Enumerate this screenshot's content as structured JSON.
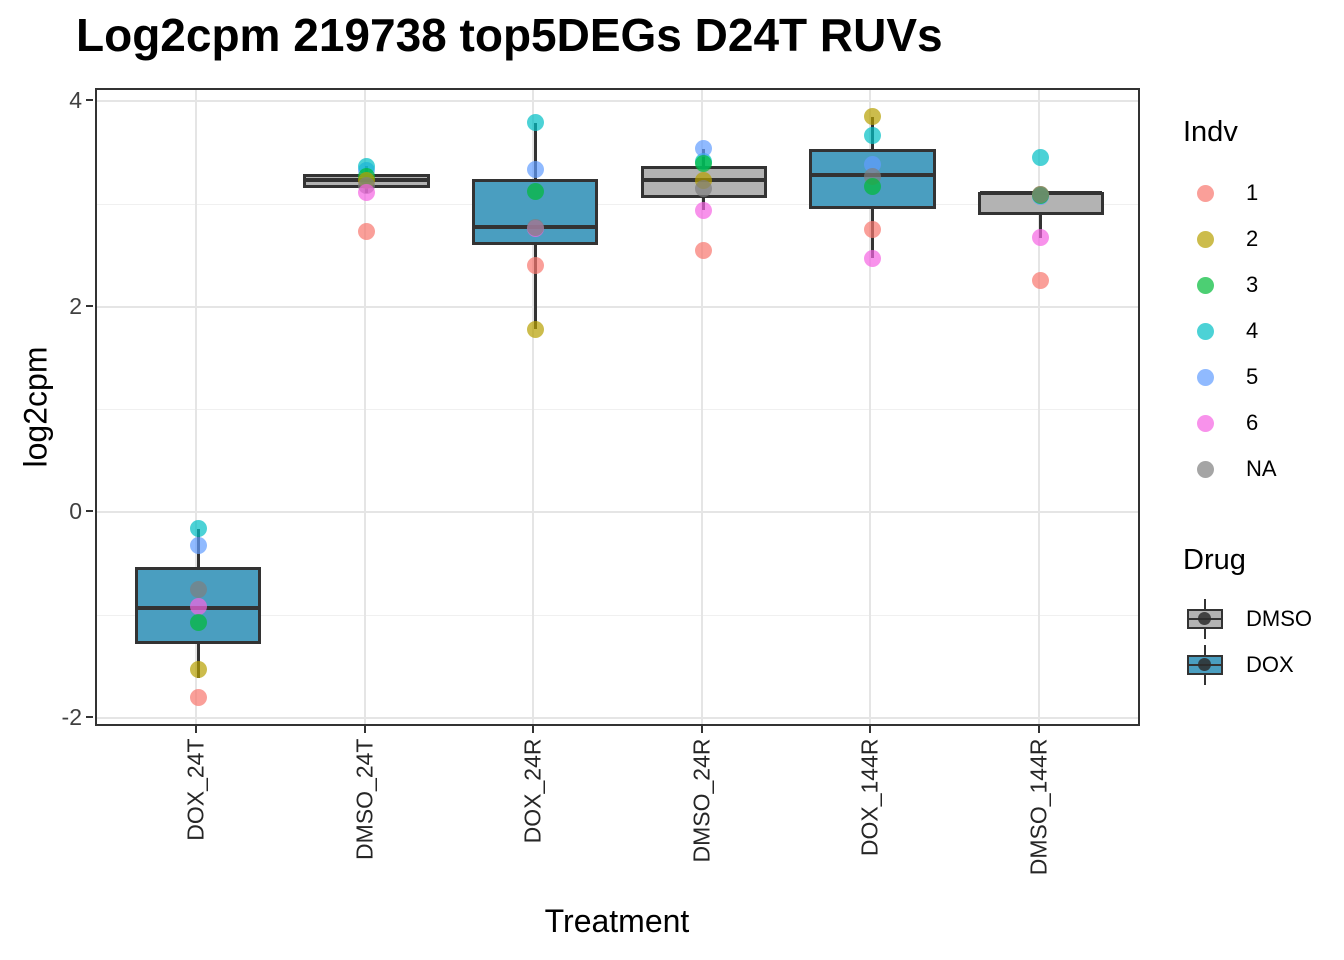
{
  "chart_data": {
    "type": "boxplot",
    "title": "Log2cpm 219738 top5DEGs D24T RUVs",
    "xlabel": "Treatment",
    "ylabel": "log2cpm",
    "categories": [
      "DOX_24T",
      "DMSO_24T",
      "DOX_24R",
      "DMSO_24R",
      "DOX_144R",
      "DMSO_144R"
    ],
    "ylim": [
      -2.09,
      4.12
    ],
    "y_ticks_major": [
      4,
      2,
      0,
      -2
    ],
    "y_ticks_minor": [
      3,
      1,
      -1
    ],
    "grid": true,
    "legend_position": "right",
    "point_alpha": 0.7,
    "boxes": [
      {
        "category": "DOX_24T",
        "drug": "DOX",
        "q1": -1.27,
        "median": -0.92,
        "q3": -0.52,
        "whisker_low": -1.6,
        "whisker_high": -0.15,
        "points": [
          {
            "indv": "5",
            "value": -0.31
          },
          {
            "indv": "4",
            "value": -0.15
          },
          {
            "indv": "NA",
            "value": -0.74
          },
          {
            "indv": "6",
            "value": -0.91
          },
          {
            "indv": "3",
            "value": -1.06
          },
          {
            "indv": "2",
            "value": -1.52
          },
          {
            "indv": "1",
            "value": -1.79
          }
        ]
      },
      {
        "category": "DMSO_24T",
        "drug": "DMSO",
        "q1": 3.17,
        "median": 3.24,
        "q3": 3.3,
        "whisker_low": 3.12,
        "whisker_high": 3.38,
        "points": [
          {
            "indv": "5",
            "value": 3.34
          },
          {
            "indv": "4",
            "value": 3.38
          },
          {
            "indv": "3",
            "value": 3.28
          },
          {
            "indv": "2",
            "value": 3.24
          },
          {
            "indv": "NA",
            "value": 3.19
          },
          {
            "indv": "6",
            "value": 3.12
          },
          {
            "indv": "1",
            "value": 2.74
          }
        ]
      },
      {
        "category": "DOX_24R",
        "drug": "DOX",
        "q1": 2.61,
        "median": 2.79,
        "q3": 3.25,
        "whisker_low": 1.79,
        "whisker_high": 3.8,
        "points": [
          {
            "indv": "4",
            "value": 3.8
          },
          {
            "indv": "5",
            "value": 3.35
          },
          {
            "indv": "3",
            "value": 3.13
          },
          {
            "indv": "6",
            "value": 2.77
          },
          {
            "indv": "NA",
            "value": 2.78
          },
          {
            "indv": "1",
            "value": 2.41
          },
          {
            "indv": "2",
            "value": 1.79
          }
        ]
      },
      {
        "category": "DMSO_24R",
        "drug": "DMSO",
        "q1": 3.07,
        "median": 3.24,
        "q3": 3.38,
        "whisker_low": 2.95,
        "whisker_high": 3.55,
        "points": [
          {
            "indv": "4",
            "value": 3.42
          },
          {
            "indv": "5",
            "value": 3.55
          },
          {
            "indv": "3",
            "value": 3.4
          },
          {
            "indv": "2",
            "value": 3.24
          },
          {
            "indv": "NA",
            "value": 3.16
          },
          {
            "indv": "6",
            "value": 2.95
          },
          {
            "indv": "1",
            "value": 2.56
          }
        ]
      },
      {
        "category": "DOX_144R",
        "drug": "DOX",
        "q1": 2.96,
        "median": 3.29,
        "q3": 3.55,
        "whisker_low": 2.48,
        "whisker_high": 3.86,
        "points": [
          {
            "indv": "2",
            "value": 3.86
          },
          {
            "indv": "4",
            "value": 3.68
          },
          {
            "indv": "5",
            "value": 3.39
          },
          {
            "indv": "NA",
            "value": 3.28
          },
          {
            "indv": "3",
            "value": 3.18
          },
          {
            "indv": "1",
            "value": 2.76
          },
          {
            "indv": "6",
            "value": 2.48
          }
        ]
      },
      {
        "category": "DMSO_144R",
        "drug": "DMSO",
        "q1": 2.9,
        "median": 3.12,
        "q3": 3.13,
        "whisker_low": 2.68,
        "whisker_high": 3.13,
        "points": [
          {
            "indv": "4",
            "value": 3.46
          },
          {
            "indv": "5",
            "value": 3.08
          },
          {
            "indv": "2",
            "value": 3.1
          },
          {
            "indv": "3",
            "value": 3.09
          },
          {
            "indv": "NA",
            "value": 3.1
          },
          {
            "indv": "6",
            "value": 2.68
          },
          {
            "indv": "1",
            "value": 2.27
          }
        ]
      }
    ],
    "legend": {
      "indv": {
        "title": "Indv",
        "items": [
          {
            "label": "1",
            "color": "#F8766D"
          },
          {
            "label": "2",
            "color": "#B79F00"
          },
          {
            "label": "3",
            "color": "#00BA38"
          },
          {
            "label": "4",
            "color": "#00BFC4"
          },
          {
            "label": "5",
            "color": "#619CFF"
          },
          {
            "label": "6",
            "color": "#F564E3"
          },
          {
            "label": "NA",
            "color": "#7F7F7F"
          }
        ]
      },
      "drug": {
        "title": "Drug",
        "items": [
          {
            "label": "DMSO",
            "fill": "#B3B3B3"
          },
          {
            "label": "DOX",
            "fill": "#4A9EC0"
          }
        ]
      }
    },
    "colors": {
      "dox_fill": "#4A9EC0",
      "dmso_fill": "#B3B3B3",
      "outline": "#333333",
      "grid_major": "#E5E5E5",
      "grid_minor": "#F0F0F0",
      "axis_text": "#404040",
      "panel_border": "#333333"
    }
  }
}
